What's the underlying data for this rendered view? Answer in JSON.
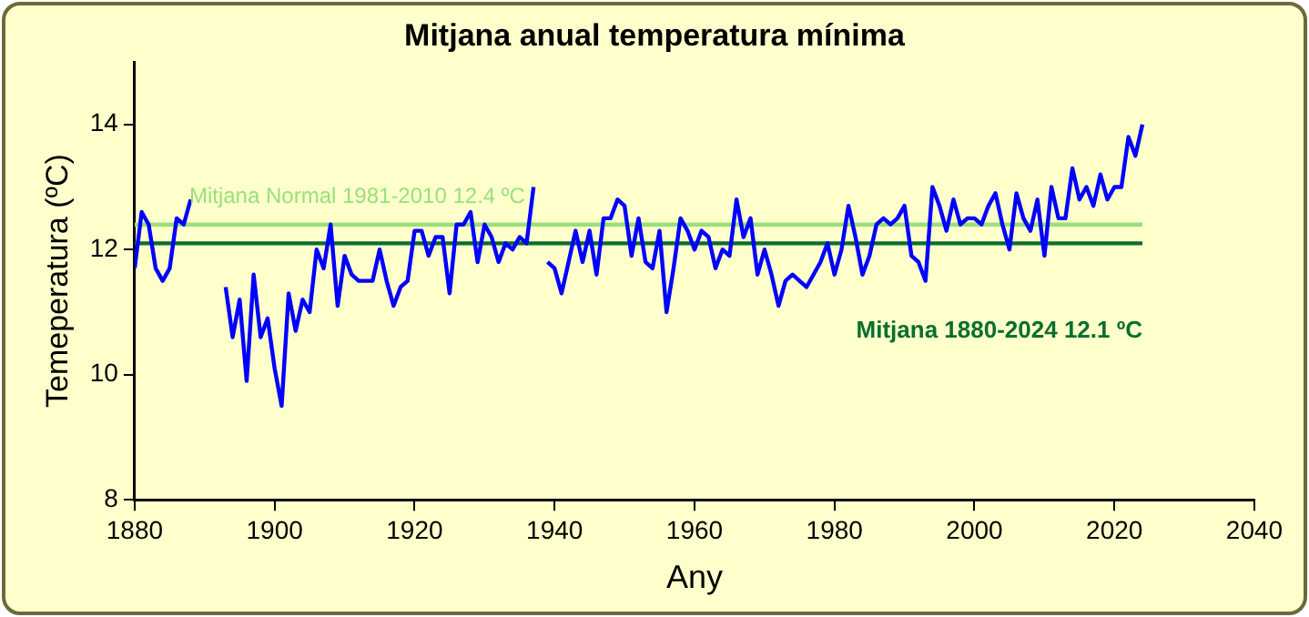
{
  "chart_data": {
    "type": "line",
    "title": "Mitjana anual temperatura mínima",
    "xlabel": "Any",
    "ylabel": "Temeperatura (ºC)",
    "xlim": [
      1880,
      2040
    ],
    "xticks": [
      1880,
      1900,
      1920,
      1940,
      1960,
      1980,
      2000,
      2020,
      2040
    ],
    "ylim": [
      8,
      15
    ],
    "yticks": [
      8,
      10,
      12,
      14
    ],
    "grid": false,
    "legend": false,
    "marker": "none",
    "line_style": "solid",
    "x": [
      1880,
      1881,
      1882,
      1883,
      1884,
      1885,
      1886,
      1887,
      1888,
      1889,
      1890,
      1891,
      1892,
      1893,
      1894,
      1895,
      1896,
      1897,
      1898,
      1899,
      1900,
      1901,
      1902,
      1903,
      1904,
      1905,
      1906,
      1907,
      1908,
      1909,
      1910,
      1911,
      1912,
      1913,
      1914,
      1915,
      1916,
      1917,
      1918,
      1919,
      1920,
      1921,
      1922,
      1923,
      1924,
      1925,
      1926,
      1927,
      1928,
      1929,
      1930,
      1931,
      1932,
      1933,
      1934,
      1935,
      1936,
      1937,
      1938,
      1939,
      1940,
      1941,
      1942,
      1943,
      1944,
      1945,
      1946,
      1947,
      1948,
      1949,
      1950,
      1951,
      1952,
      1953,
      1954,
      1955,
      1956,
      1957,
      1958,
      1959,
      1960,
      1961,
      1962,
      1963,
      1964,
      1965,
      1966,
      1967,
      1968,
      1969,
      1970,
      1971,
      1972,
      1973,
      1974,
      1975,
      1976,
      1977,
      1978,
      1979,
      1980,
      1981,
      1982,
      1983,
      1984,
      1985,
      1986,
      1987,
      1988,
      1989,
      1990,
      1991,
      1992,
      1993,
      1994,
      1995,
      1996,
      1997,
      1998,
      1999,
      2000,
      2001,
      2002,
      2003,
      2004,
      2005,
      2006,
      2007,
      2008,
      2009,
      2010,
      2011,
      2012,
      2013,
      2014,
      2015,
      2016,
      2017,
      2018,
      2019,
      2020,
      2021,
      2022,
      2023,
      2024
    ],
    "series": [
      {
        "color": "#0000ff",
        "values": [
          11.7,
          12.6,
          12.4,
          11.7,
          11.5,
          11.7,
          12.5,
          12.4,
          12.8,
          null,
          null,
          null,
          null,
          11.4,
          10.6,
          11.2,
          9.9,
          11.6,
          10.6,
          10.9,
          10.1,
          9.5,
          11.3,
          10.7,
          11.2,
          11.0,
          12.0,
          11.7,
          12.4,
          11.1,
          11.9,
          11.6,
          11.5,
          11.5,
          11.5,
          12.0,
          11.5,
          11.1,
          11.4,
          11.5,
          12.3,
          12.3,
          11.9,
          12.2,
          12.2,
          11.3,
          12.4,
          12.4,
          12.6,
          11.8,
          12.4,
          12.2,
          11.8,
          12.1,
          12.0,
          12.2,
          12.1,
          13.0,
          null,
          11.8,
          11.7,
          11.3,
          11.8,
          12.3,
          11.8,
          12.3,
          11.6,
          12.5,
          12.5,
          12.8,
          12.7,
          11.9,
          12.5,
          11.8,
          11.7,
          12.3,
          11.0,
          11.7,
          12.5,
          12.3,
          12.0,
          12.3,
          12.2,
          11.7,
          12.0,
          11.9,
          12.8,
          12.2,
          12.5,
          11.6,
          12.0,
          11.6,
          11.1,
          11.5,
          11.6,
          11.5,
          11.4,
          11.6,
          11.8,
          12.1,
          11.6,
          12.0,
          12.7,
          12.2,
          11.6,
          11.9,
          12.4,
          12.5,
          12.4,
          12.5,
          12.7,
          11.9,
          11.8,
          11.5,
          13.0,
          12.7,
          12.3,
          12.8,
          12.4,
          12.5,
          12.5,
          12.4,
          12.7,
          12.9,
          12.4,
          12.0,
          12.9,
          12.5,
          12.3,
          12.8,
          11.9,
          13.0,
          12.5,
          12.5,
          13.3,
          12.8,
          13.0,
          12.7,
          13.2,
          12.8,
          13.0,
          13.0,
          13.8,
          13.5,
          14.0
        ]
      }
    ],
    "ref_lines": [
      {
        "axis": "y",
        "value": 12.4,
        "label": "Mitjana Normal 1981-2010 12.4 ºC",
        "color": "#99e07a"
      },
      {
        "axis": "y",
        "value": 12.1,
        "label": "Mitjana 1880-2024 12.1 ºC",
        "color": "#0b6e2e"
      }
    ]
  }
}
